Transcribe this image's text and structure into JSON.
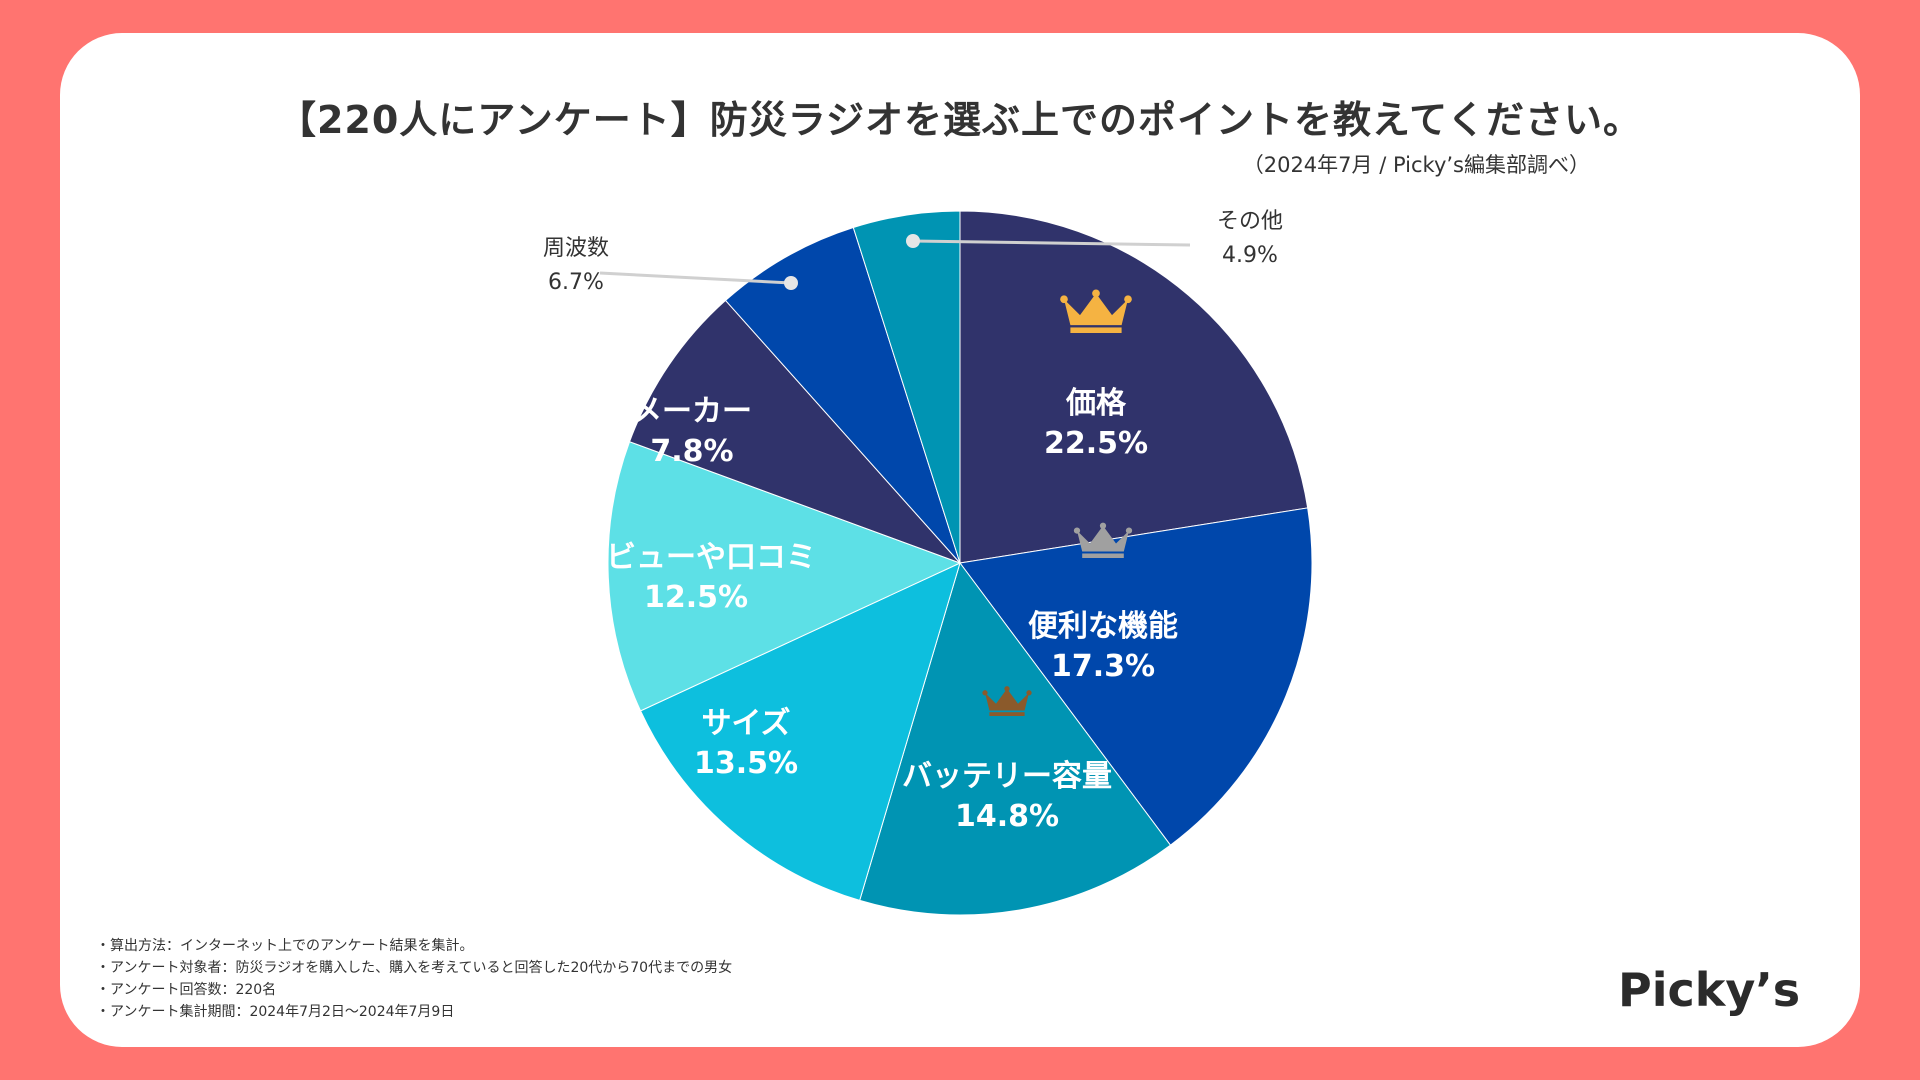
{
  "title": "【220人にアンケート】防災ラジオを選ぶ上でのポイントを教えてください。",
  "subtitle": "（2024年7月 / Picky’s編集部調べ）",
  "notes": [
    "・算出方法：インターネット上でのアンケート結果を集計。",
    "・アンケート対象者：防災ラジオを購入した、購入を考えていると回答した20代から70代までの男女",
    "・アンケート回答数：220名",
    "・アンケート集計期間：2024年7月2日〜2024年7月9日"
  ],
  "logo": "Picky’s",
  "chart_data": {
    "type": "pie",
    "title": "【220人にアンケート】防災ラジオを選ぶ上でのポイントを教えてください。",
    "unit": "%",
    "start": "top, clockwise",
    "slices": [
      {
        "label": "価格",
        "value": 22.5,
        "display": "22.5%",
        "color": "#30336b",
        "rank": 1,
        "crown_color": "#f5b342",
        "label_placement": "inside"
      },
      {
        "label": "便利な機能",
        "value": 17.3,
        "display": "17.3%",
        "color": "#0047ab",
        "rank": 2,
        "crown_color": "#a0a0a0",
        "label_placement": "inside"
      },
      {
        "label": "バッテリー容量",
        "value": 14.8,
        "display": "14.8%",
        "color": "#0094b3",
        "rank": 3,
        "crown_color": "#8b5a2b",
        "label_placement": "inside"
      },
      {
        "label": "サイズ",
        "value": 13.5,
        "display": "13.5%",
        "color": "#0dbfde",
        "label_placement": "inside"
      },
      {
        "label": "レビューや口コミ",
        "value": 12.5,
        "display": "12.5%",
        "color": "#5de0e6",
        "label_placement": "inside"
      },
      {
        "label": "メーカー",
        "value": 7.8,
        "display": "7.8%",
        "color": "#30336b",
        "label_placement": "inside"
      },
      {
        "label": "周波数",
        "value": 6.7,
        "display": "6.7%",
        "color": "#0047ab",
        "label_placement": "outside-left"
      },
      {
        "label": "その他",
        "value": 4.9,
        "display": "4.9%",
        "color": "#0094b3",
        "label_placement": "outside-right"
      }
    ]
  }
}
